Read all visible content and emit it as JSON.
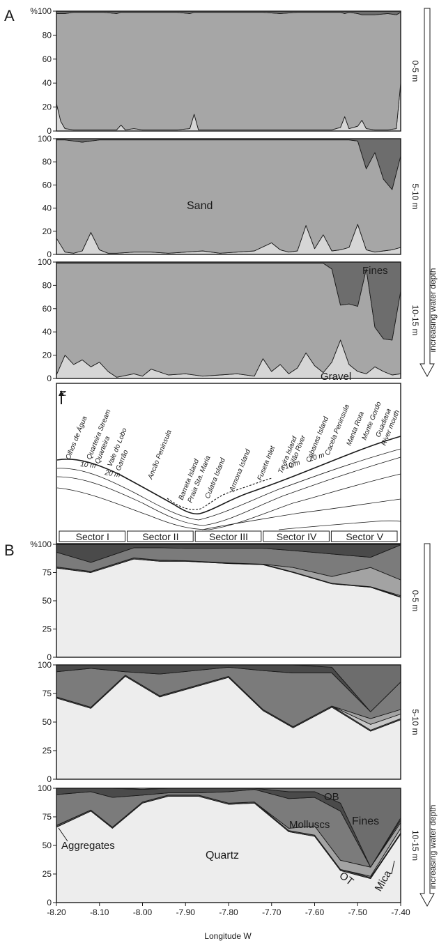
{
  "colors": {
    "sand": "#a6a6a6",
    "fines": "#6d6d6d",
    "gravel": "#d6d6d6",
    "quartz": "#ededed",
    "aggregates": "#555555",
    "molluscs": "#7b7b7b",
    "ob": "#4a4a4a",
    "ot": "#a3a3a3",
    "mica": "#c6c6c6",
    "white": "#ffffff",
    "line": "#1a1a1a",
    "sea": "#ffffff",
    "land": "#ffffff"
  },
  "figure": {
    "panel_a_label": "A",
    "panel_b_label": "B",
    "xlabel": "Longitude W",
    "x_ticks": [
      "-8.20",
      "-8.10",
      "-8.00",
      "-7.90",
      "-7.80",
      "-7.70",
      "-7.60",
      "-7.50",
      "-7.40"
    ],
    "arrow_label": "increasing water depth"
  },
  "chart_data": [
    {
      "type": "area",
      "panel": "A",
      "depth": "0-5 m",
      "ylim": [
        0,
        100
      ],
      "y_ticks": [
        "%100",
        "80",
        "60",
        "40",
        "20",
        "0"
      ],
      "xlim": [
        -8.2,
        -7.4
      ],
      "x": [
        -8.2,
        -8.19,
        -8.18,
        -8.16,
        -8.12,
        -8.09,
        -8.06,
        -8.05,
        -8.04,
        -8.02,
        -8.0,
        -7.98,
        -7.95,
        -7.92,
        -7.89,
        -7.88,
        -7.87,
        -7.84,
        -7.8,
        -7.76,
        -7.72,
        -7.68,
        -7.64,
        -7.6,
        -7.56,
        -7.54,
        -7.53,
        -7.52,
        -7.5,
        -7.49,
        -7.48,
        -7.46,
        -7.43,
        -7.41,
        -7.4
      ],
      "series": [
        {
          "name": "Gravel",
          "values": [
            23,
            8,
            2,
            1,
            1,
            1,
            1,
            5,
            1,
            2,
            1,
            1,
            1,
            1,
            2,
            14,
            1,
            1,
            1,
            1,
            1,
            1,
            1,
            1,
            1,
            3,
            12,
            2,
            4,
            9,
            2,
            1,
            1,
            2,
            40
          ]
        },
        {
          "name": "Sand",
          "values": [
            75,
            90,
            96,
            98,
            98,
            98,
            97,
            94,
            98,
            97,
            98,
            98,
            98,
            98,
            96,
            85,
            98,
            98,
            98,
            98,
            98,
            97,
            98,
            98,
            98,
            96,
            86,
            97,
            94,
            88,
            95,
            96,
            97,
            95,
            59
          ]
        },
        {
          "name": "Fines",
          "values": [
            2,
            2,
            2,
            1,
            1,
            1,
            2,
            1,
            1,
            1,
            1,
            1,
            1,
            1,
            2,
            1,
            1,
            1,
            1,
            1,
            1,
            2,
            1,
            1,
            1,
            1,
            2,
            1,
            2,
            3,
            3,
            3,
            2,
            3,
            1
          ]
        }
      ]
    },
    {
      "type": "area",
      "panel": "A",
      "depth": "5-10 m",
      "ylim": [
        0,
        100
      ],
      "y_ticks": [
        "100",
        "80",
        "60",
        "40",
        "20",
        "0"
      ],
      "xlim": [
        -8.2,
        -7.4
      ],
      "x": [
        -8.2,
        -8.18,
        -8.16,
        -8.14,
        -8.12,
        -8.1,
        -8.08,
        -8.06,
        -8.02,
        -7.98,
        -7.94,
        -7.9,
        -7.86,
        -7.82,
        -7.78,
        -7.74,
        -7.7,
        -7.68,
        -7.66,
        -7.64,
        -7.62,
        -7.6,
        -7.58,
        -7.56,
        -7.54,
        -7.52,
        -7.5,
        -7.48,
        -7.46,
        -7.44,
        -7.42,
        -7.4
      ],
      "series": [
        {
          "name": "Gravel",
          "values": [
            14,
            2,
            1,
            3,
            19,
            4,
            1,
            1,
            2,
            2,
            1,
            2,
            3,
            1,
            2,
            3,
            10,
            4,
            2,
            3,
            25,
            5,
            17,
            3,
            4,
            6,
            26,
            4,
            2,
            3,
            4,
            6
          ]
        },
        {
          "name": "Sand",
          "values": [
            85,
            97,
            97,
            94,
            79,
            95,
            98,
            98,
            97,
            97,
            98,
            97,
            96,
            98,
            97,
            96,
            89,
            95,
            97,
            96,
            74,
            94,
            82,
            96,
            95,
            93,
            72,
            70,
            86,
            62,
            52,
            79
          ]
        },
        {
          "name": "Fines",
          "values": [
            1,
            1,
            2,
            3,
            2,
            1,
            1,
            1,
            1,
            1,
            1,
            1,
            1,
            1,
            1,
            1,
            1,
            1,
            1,
            1,
            1,
            1,
            1,
            1,
            1,
            1,
            2,
            26,
            12,
            35,
            44,
            15
          ]
        }
      ]
    },
    {
      "type": "area",
      "panel": "A",
      "depth": "10-15 m",
      "ylim": [
        0,
        100
      ],
      "y_ticks": [
        "100",
        "80",
        "60",
        "40",
        "20",
        "0"
      ],
      "xlim": [
        -8.2,
        -7.4
      ],
      "x": [
        -8.2,
        -8.18,
        -8.16,
        -8.14,
        -8.12,
        -8.1,
        -8.08,
        -8.06,
        -8.02,
        -8.0,
        -7.98,
        -7.94,
        -7.9,
        -7.86,
        -7.82,
        -7.78,
        -7.74,
        -7.72,
        -7.7,
        -7.68,
        -7.66,
        -7.64,
        -7.62,
        -7.6,
        -7.58,
        -7.56,
        -7.54,
        -7.52,
        -7.5,
        -7.48,
        -7.46,
        -7.44,
        -7.42,
        -7.4
      ],
      "series": [
        {
          "name": "Gravel",
          "values": [
            3,
            20,
            12,
            16,
            10,
            14,
            6,
            1,
            4,
            2,
            8,
            3,
            4,
            2,
            3,
            4,
            2,
            17,
            6,
            12,
            4,
            9,
            22,
            11,
            5,
            14,
            33,
            12,
            6,
            4,
            10,
            6,
            3,
            4
          ]
        },
        {
          "name": "Sand",
          "values": [
            96,
            79,
            87,
            83,
            89,
            85,
            93,
            98,
            95,
            97,
            91,
            96,
            95,
            97,
            96,
            95,
            97,
            82,
            93,
            87,
            95,
            90,
            77,
            88,
            94,
            80,
            30,
            52,
            56,
            90,
            34,
            28,
            30,
            71
          ]
        },
        {
          "name": "Fines",
          "values": [
            1,
            1,
            1,
            1,
            1,
            1,
            1,
            1,
            1,
            1,
            1,
            1,
            1,
            1,
            1,
            1,
            1,
            1,
            1,
            1,
            1,
            1,
            1,
            1,
            1,
            6,
            37,
            36,
            38,
            6,
            56,
            66,
            67,
            25
          ]
        }
      ],
      "annotations": [
        "Sand",
        "Fines",
        "Gravel"
      ]
    },
    {
      "type": "area",
      "panel": "B",
      "depth": "0-5 m",
      "ylim": [
        0,
        100
      ],
      "y_ticks": [
        "%100",
        "75",
        "50",
        "25",
        "0"
      ],
      "xlim": [
        -8.2,
        -7.4
      ],
      "x": [
        -8.2,
        -8.12,
        -8.02,
        -7.96,
        -7.9,
        -7.8,
        -7.72,
        -7.65,
        -7.56,
        -7.47,
        -7.4
      ],
      "series": [
        {
          "name": "Quartz",
          "values": [
            79,
            75,
            87,
            85,
            85,
            83,
            82,
            75,
            65,
            62,
            53
          ]
        },
        {
          "name": "Aggregates",
          "values": [
            1,
            1,
            1,
            1,
            0.5,
            0.5,
            0.5,
            0.5,
            0.5,
            0.5,
            0.5
          ]
        },
        {
          "name": "Mica",
          "values": [
            0,
            0,
            0,
            0,
            0,
            0,
            0,
            0,
            0,
            0,
            1
          ]
        },
        {
          "name": "OT",
          "values": [
            0,
            0,
            0,
            0,
            0,
            0,
            0,
            4,
            6,
            17,
            14
          ]
        },
        {
          "name": "Molluscs",
          "values": [
            13,
            8,
            9,
            11,
            11,
            13,
            14,
            15,
            20,
            9,
            31
          ]
        },
        {
          "name": "OB",
          "values": [
            7,
            16,
            3,
            3,
            3.5,
            3.5,
            3.5,
            5.5,
            8.5,
            11.5,
            0.5
          ]
        },
        {
          "name": "Fines",
          "values": [
            0,
            0,
            0,
            0,
            0,
            0,
            0,
            0,
            0,
            0,
            0
          ]
        }
      ]
    },
    {
      "type": "area",
      "panel": "B",
      "depth": "5-10 m",
      "ylim": [
        0,
        100
      ],
      "y_ticks": [
        "100",
        "75",
        "50",
        "25",
        "0"
      ],
      "xlim": [
        -8.2,
        -7.4
      ],
      "x": [
        -8.2,
        -8.12,
        -8.04,
        -7.96,
        -7.8,
        -7.72,
        -7.65,
        -7.56,
        -7.47,
        -7.4
      ],
      "series": [
        {
          "name": "Quartz",
          "values": [
            71,
            62,
            90,
            72,
            89,
            60,
            45,
            63,
            42,
            52
          ]
        },
        {
          "name": "Aggregates",
          "values": [
            1,
            1,
            1,
            1,
            1,
            1,
            1,
            1,
            1,
            1
          ]
        },
        {
          "name": "Mica",
          "values": [
            0,
            0,
            0,
            0,
            0,
            0,
            0,
            0,
            5,
            4
          ]
        },
        {
          "name": "OT",
          "values": [
            0,
            0,
            0,
            0,
            0,
            0,
            0,
            0,
            5,
            4
          ]
        },
        {
          "name": "Molluscs",
          "values": [
            22,
            34,
            3,
            19,
            8,
            34,
            47,
            29,
            6,
            24
          ]
        },
        {
          "name": "OB",
          "values": [
            6,
            3,
            6,
            8,
            2,
            5,
            7,
            5,
            0,
            0
          ]
        },
        {
          "name": "Fines",
          "values": [
            0,
            0,
            0,
            0,
            0,
            0,
            0,
            2,
            41,
            15
          ]
        }
      ]
    },
    {
      "type": "area",
      "panel": "B",
      "depth": "10-15 m",
      "ylim": [
        0,
        100
      ],
      "y_ticks": [
        "100",
        "75",
        "50",
        "25",
        "0"
      ],
      "xlim": [
        -8.2,
        -7.4
      ],
      "x": [
        -8.2,
        -8.12,
        -8.07,
        -8.0,
        -7.94,
        -7.87,
        -7.8,
        -7.74,
        -7.66,
        -7.6,
        -7.54,
        -7.47,
        -7.4
      ],
      "series": [
        {
          "name": "Quartz",
          "values": [
            66,
            80,
            65,
            87,
            93,
            93,
            86,
            87,
            62,
            58,
            28,
            21,
            60
          ]
        },
        {
          "name": "Aggregates",
          "values": [
            1.5,
            1,
            1,
            1,
            1,
            1,
            1,
            1,
            1,
            1,
            1,
            1,
            1
          ]
        },
        {
          "name": "Mica",
          "values": [
            0,
            0,
            0,
            0,
            0,
            0,
            0,
            0,
            0,
            0,
            0,
            1,
            4
          ]
        },
        {
          "name": "OT",
          "values": [
            0,
            0,
            0,
            0,
            0,
            0,
            0,
            0,
            2,
            8,
            8,
            8,
            5
          ]
        },
        {
          "name": "Molluscs",
          "values": [
            27,
            16,
            26,
            6,
            2,
            2,
            10,
            11,
            26,
            25,
            43,
            0,
            2
          ]
        },
        {
          "name": "OB",
          "values": [
            5.5,
            3,
            8,
            5,
            4,
            4,
            3,
            1,
            6,
            5,
            7,
            0,
            2
          ]
        },
        {
          "name": "Fines",
          "values": [
            0,
            0,
            0,
            0,
            0,
            0,
            0,
            0,
            3,
            3,
            13,
            69,
            26
          ]
        }
      ],
      "annotations": [
        "OB",
        "Fines",
        "Molluscs",
        "Aggregates",
        "Quartz",
        "OT",
        "Mica"
      ]
    }
  ],
  "map": {
    "north": "N",
    "places": [
      "Olhos de Água",
      "Quarteira Stream",
      "Quarteira",
      "Vale do Lobo",
      "Garrão",
      "Ancão Peninsula",
      "Barreta Island",
      "Praia Sta. Maria",
      "Culatra Island",
      "Armona Island",
      "Fuseta Inlet",
      "Tavira Island",
      "Gilão River",
      "Cabanas Island",
      "Cacela Peninsula",
      "Manta Rota",
      "Monte Gordo",
      "Guadiana",
      "River mouth"
    ],
    "isobaths": [
      "10 m",
      "20 m",
      "10 m",
      "20 m"
    ],
    "sectors": [
      "Sector I",
      "Sector II",
      "Sector III",
      "Sector IV",
      "Sector V"
    ]
  }
}
